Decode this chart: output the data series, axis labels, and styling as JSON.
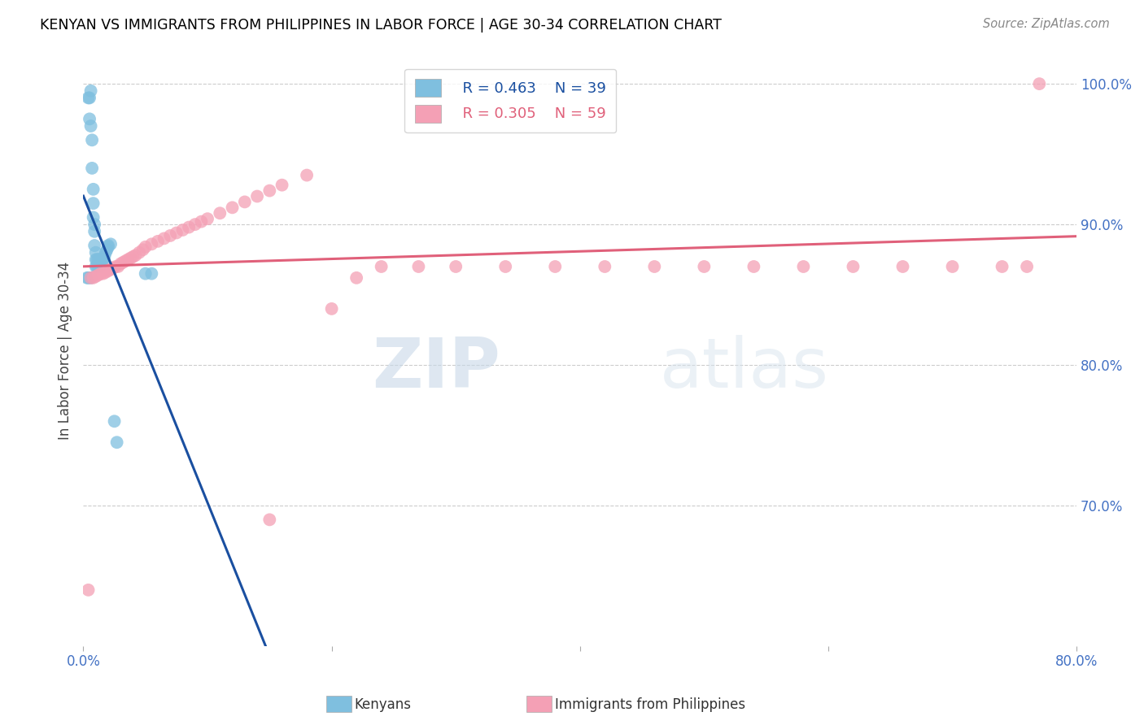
{
  "title": "KENYAN VS IMMIGRANTS FROM PHILIPPINES IN LABOR FORCE | AGE 30-34 CORRELATION CHART",
  "source": "Source: ZipAtlas.com",
  "ylabel": "In Labor Force | Age 30-34",
  "xlim": [
    0.0,
    0.8
  ],
  "ylim": [
    0.6,
    1.02
  ],
  "xticks": [
    0.0,
    0.2,
    0.4,
    0.6,
    0.8
  ],
  "xticklabels": [
    "0.0%",
    "",
    "",
    "",
    "80.0%"
  ],
  "yticks": [
    0.7,
    0.8,
    0.9,
    1.0
  ],
  "yticklabels": [
    "70.0%",
    "80.0%",
    "90.0%",
    "100.0%"
  ],
  "blue_color": "#7fbfdf",
  "pink_color": "#f4a0b5",
  "blue_line_color": "#1a4fa0",
  "pink_line_color": "#e0607a",
  "legend_r_blue": "R = 0.463",
  "legend_n_blue": "N = 39",
  "legend_r_pink": "R = 0.305",
  "legend_n_pink": "N = 59",
  "legend_label_blue": "Kenyans",
  "legend_label_pink": "Immigrants from Philippines",
  "watermark_zip": "ZIP",
  "watermark_atlas": "atlas",
  "blue_scatter_x": [
    0.004,
    0.005,
    0.005,
    0.006,
    0.006,
    0.007,
    0.007,
    0.008,
    0.008,
    0.008,
    0.009,
    0.009,
    0.009,
    0.01,
    0.01,
    0.01,
    0.011,
    0.011,
    0.012,
    0.012,
    0.013,
    0.013,
    0.014,
    0.014,
    0.015,
    0.016,
    0.017,
    0.018,
    0.019,
    0.02,
    0.02,
    0.022,
    0.025,
    0.027,
    0.05,
    0.055,
    0.003,
    0.004,
    0.006
  ],
  "blue_scatter_y": [
    0.99,
    0.99,
    0.975,
    0.995,
    0.97,
    0.96,
    0.94,
    0.925,
    0.915,
    0.905,
    0.9,
    0.895,
    0.885,
    0.88,
    0.875,
    0.87,
    0.875,
    0.87,
    0.875,
    0.87,
    0.875,
    0.87,
    0.875,
    0.872,
    0.873,
    0.875,
    0.877,
    0.88,
    0.882,
    0.885,
    0.884,
    0.886,
    0.76,
    0.745,
    0.865,
    0.865,
    0.862,
    0.862,
    0.862
  ],
  "pink_scatter_x": [
    0.004,
    0.006,
    0.008,
    0.01,
    0.012,
    0.014,
    0.016,
    0.018,
    0.02,
    0.022,
    0.024,
    0.026,
    0.028,
    0.03,
    0.032,
    0.034,
    0.036,
    0.038,
    0.04,
    0.042,
    0.045,
    0.048,
    0.05,
    0.055,
    0.06,
    0.065,
    0.07,
    0.075,
    0.08,
    0.085,
    0.09,
    0.095,
    0.1,
    0.11,
    0.12,
    0.13,
    0.14,
    0.15,
    0.16,
    0.18,
    0.2,
    0.22,
    0.24,
    0.27,
    0.3,
    0.34,
    0.38,
    0.42,
    0.46,
    0.5,
    0.54,
    0.58,
    0.62,
    0.66,
    0.7,
    0.74,
    0.76,
    0.77,
    0.15
  ],
  "pink_scatter_y": [
    0.64,
    0.862,
    0.862,
    0.863,
    0.864,
    0.865,
    0.865,
    0.866,
    0.867,
    0.868,
    0.869,
    0.87,
    0.87,
    0.872,
    0.873,
    0.874,
    0.875,
    0.876,
    0.877,
    0.878,
    0.88,
    0.882,
    0.884,
    0.886,
    0.888,
    0.89,
    0.892,
    0.894,
    0.896,
    0.898,
    0.9,
    0.902,
    0.904,
    0.908,
    0.912,
    0.916,
    0.92,
    0.924,
    0.928,
    0.935,
    0.84,
    0.862,
    0.87,
    0.87,
    0.87,
    0.87,
    0.87,
    0.87,
    0.87,
    0.87,
    0.87,
    0.87,
    0.87,
    0.87,
    0.87,
    0.87,
    0.87,
    1.0,
    0.69
  ]
}
